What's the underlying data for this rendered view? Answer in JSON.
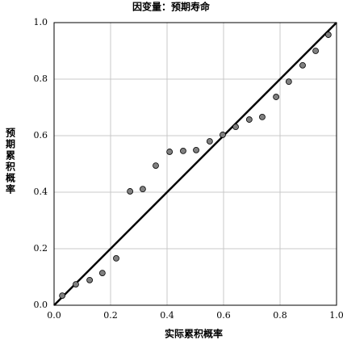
{
  "chart_data": {
    "type": "scatter",
    "title": "因变量：预期寿命",
    "x_label": "实际累积概率",
    "y_label": "预期累积概率",
    "xlim": [
      0,
      1
    ],
    "ylim": [
      0,
      1
    ],
    "xticks": [
      {
        "value": 0,
        "label": "0.0"
      },
      0.2,
      0.4,
      0.6,
      0.8,
      {
        "value": 1,
        "label": "1.0"
      }
    ],
    "yticks": [
      {
        "value": 0,
        "label": "0.0"
      },
      0.2,
      0.4,
      0.6,
      0.8,
      {
        "value": 1,
        "label": "1.0"
      }
    ],
    "grid": true,
    "color": "#808080",
    "x": [
      0.029,
      0.077,
      0.126,
      0.171,
      0.22,
      0.269,
      0.314,
      0.36,
      0.409,
      0.457,
      0.503,
      0.551,
      0.597,
      0.643,
      0.691,
      0.737,
      0.786,
      0.831,
      0.88,
      0.926,
      0.971
    ],
    "values": [
      0.034,
      0.074,
      0.089,
      0.114,
      0.166,
      0.403,
      0.411,
      0.494,
      0.543,
      0.546,
      0.549,
      0.58,
      0.603,
      0.631,
      0.657,
      0.666,
      0.737,
      0.791,
      0.849,
      0.9,
      0.957
    ]
  }
}
